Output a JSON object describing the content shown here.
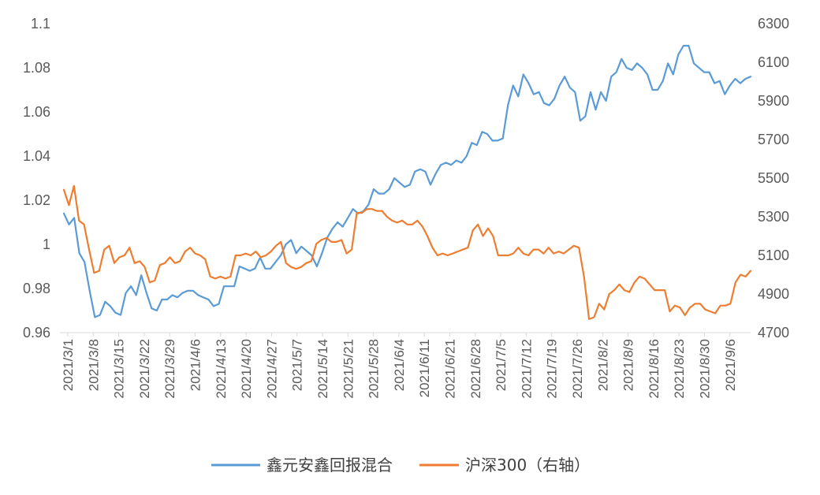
{
  "chart_data": {
    "type": "line",
    "title": "",
    "legend_position": "bottom",
    "grid": false,
    "x_ticks": [
      "2021/3/1",
      "2021/3/8",
      "2021/3/15",
      "2021/3/22",
      "2021/3/29",
      "2021/4/6",
      "2021/4/13",
      "2021/4/20",
      "2021/4/27",
      "2021/5/7",
      "2021/5/14",
      "2021/5/21",
      "2021/5/28",
      "2021/6/4",
      "2021/6/11",
      "2021/6/21",
      "2021/6/28",
      "2021/7/5",
      "2021/7/12",
      "2021/7/19",
      "2021/7/26",
      "2021/8/2",
      "2021/8/9",
      "2021/8/16",
      "2021/8/23",
      "2021/8/30",
      "2021/9/6"
    ],
    "y_left": {
      "min": 0.96,
      "max": 1.1,
      "ticks": [
        0.96,
        0.98,
        1,
        1.02,
        1.04,
        1.06,
        1.08,
        1.1
      ],
      "tick_labels": [
        "0.96",
        "0.98",
        "1",
        "1.02",
        "1.04",
        "1.06",
        "1.08",
        "1.1"
      ]
    },
    "y_right": {
      "min": 4700,
      "max": 6300,
      "ticks": [
        4700,
        4900,
        5100,
        5300,
        5500,
        5700,
        5900,
        6100,
        6300
      ],
      "tick_labels": [
        "4700",
        "4900",
        "5100",
        "5300",
        "5500",
        "5700",
        "5900",
        "6100",
        "6300"
      ]
    },
    "series": [
      {
        "name": "鑫元安鑫回报混合",
        "axis": "left",
        "color": "#5B9BD5",
        "values": [
          1.014,
          1.009,
          1.012,
          0.996,
          0.992,
          0.979,
          0.967,
          0.968,
          0.974,
          0.972,
          0.969,
          0.968,
          0.978,
          0.981,
          0.977,
          0.986,
          0.978,
          0.971,
          0.97,
          0.975,
          0.975,
          0.977,
          0.976,
          0.978,
          0.979,
          0.979,
          0.977,
          0.976,
          0.975,
          0.972,
          0.973,
          0.981,
          0.981,
          0.981,
          0.99,
          0.989,
          0.988,
          0.989,
          0.994,
          0.989,
          0.989,
          0.992,
          0.995,
          1.0,
          1.002,
          0.996,
          0.999,
          0.997,
          0.995,
          0.99,
          0.996,
          1.003,
          1.007,
          1.01,
          1.008,
          1.012,
          1.016,
          1.014,
          1.015,
          1.018,
          1.025,
          1.023,
          1.023,
          1.025,
          1.03,
          1.028,
          1.026,
          1.027,
          1.033,
          1.034,
          1.033,
          1.027,
          1.032,
          1.036,
          1.037,
          1.036,
          1.038,
          1.037,
          1.04,
          1.046,
          1.045,
          1.051,
          1.05,
          1.047,
          1.047,
          1.048,
          1.063,
          1.072,
          1.067,
          1.077,
          1.073,
          1.068,
          1.069,
          1.064,
          1.063,
          1.066,
          1.072,
          1.076,
          1.071,
          1.069,
          1.056,
          1.058,
          1.069,
          1.061,
          1.069,
          1.065,
          1.076,
          1.078,
          1.084,
          1.08,
          1.079,
          1.082,
          1.08,
          1.077,
          1.07,
          1.07,
          1.074,
          1.082,
          1.077,
          1.086,
          1.09,
          1.09,
          1.082,
          1.08,
          1.078,
          1.078,
          1.073,
          1.074,
          1.068,
          1.072,
          1.075,
          1.073,
          1.075,
          1.076
        ]
      },
      {
        "name": "沪深300（右轴）",
        "axis": "right",
        "color": "#ED7D31",
        "values": [
          5440,
          5360,
          5460,
          5280,
          5260,
          5130,
          5010,
          5020,
          5130,
          5150,
          5060,
          5090,
          5100,
          5140,
          5060,
          5070,
          5040,
          4960,
          4970,
          5050,
          5060,
          5090,
          5060,
          5070,
          5120,
          5140,
          5110,
          5100,
          5080,
          4990,
          4980,
          4990,
          4980,
          4990,
          5100,
          5100,
          5110,
          5100,
          5120,
          5090,
          5100,
          5120,
          5150,
          5170,
          5060,
          5040,
          5030,
          5040,
          5060,
          5070,
          5160,
          5180,
          5190,
          5170,
          5170,
          5180,
          5110,
          5130,
          5320,
          5320,
          5340,
          5340,
          5330,
          5330,
          5300,
          5280,
          5270,
          5280,
          5260,
          5260,
          5280,
          5250,
          5200,
          5140,
          5100,
          5110,
          5100,
          5110,
          5120,
          5130,
          5140,
          5230,
          5260,
          5200,
          5240,
          5200,
          5100,
          5100,
          5100,
          5110,
          5140,
          5110,
          5100,
          5130,
          5130,
          5110,
          5140,
          5110,
          5120,
          5110,
          5130,
          5150,
          5140,
          4990,
          4770,
          4780,
          4850,
          4820,
          4900,
          4920,
          4950,
          4920,
          4910,
          4960,
          4990,
          4980,
          4950,
          4920,
          4920,
          4920,
          4810,
          4840,
          4830,
          4790,
          4830,
          4850,
          4850,
          4820,
          4810,
          4800,
          4840,
          4840,
          4850,
          4960,
          5000,
          4990,
          5020
        ]
      }
    ]
  }
}
